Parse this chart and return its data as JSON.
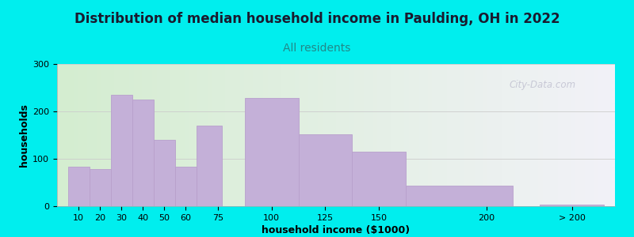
{
  "title": "Distribution of median household income in Paulding, OH in 2022",
  "subtitle": "All residents",
  "xlabel": "household income ($1000)",
  "ylabel": "households",
  "background_color": "#00EEEE",
  "bar_color": "#c4b0d8",
  "bar_edge_color": "#b8a0cc",
  "categories": [
    "10",
    "20",
    "30",
    "40",
    "50",
    "60",
    "75",
    "100",
    "125",
    "150",
    "200",
    "> 200"
  ],
  "tick_positions": [
    10,
    20,
    30,
    40,
    50,
    60,
    75,
    100,
    125,
    150,
    200,
    240
  ],
  "bar_lefts": [
    5,
    15,
    25,
    35,
    45,
    55,
    65,
    87.5,
    112.5,
    137.5,
    162.5,
    225
  ],
  "bar_widths": [
    10,
    10,
    10,
    10,
    10,
    10,
    12,
    25,
    25,
    25,
    50,
    30
  ],
  "values": [
    83,
    78,
    235,
    225,
    140,
    83,
    170,
    228,
    152,
    115,
    44,
    4
  ],
  "ylim": [
    0,
    300
  ],
  "yticks": [
    0,
    100,
    200,
    300
  ],
  "xlim": [
    0,
    260
  ],
  "watermark": "City-Data.com",
  "title_fontsize": 12,
  "subtitle_fontsize": 10,
  "axis_label_fontsize": 9,
  "tick_fontsize": 8,
  "title_color": "#1a1a2e",
  "subtitle_color": "#228888"
}
